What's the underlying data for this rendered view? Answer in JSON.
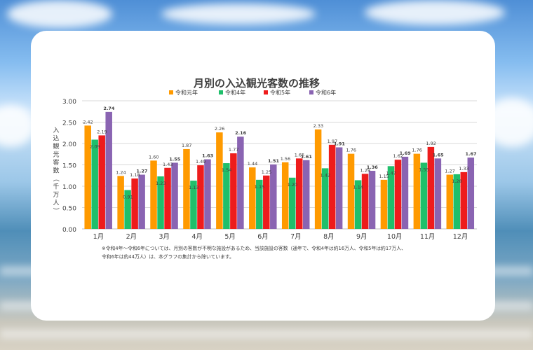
{
  "chart_data": {
    "type": "bar",
    "title": "月別の入込観光客数の推移",
    "ylabel": "入込観光客数（千万人）",
    "xlabel": "",
    "ylim": [
      0,
      3
    ],
    "yticks": [
      "0.00",
      "0.50",
      "1.00",
      "1.50",
      "2.00",
      "2.50",
      "3.00"
    ],
    "categories": [
      "1月",
      "2月",
      "3月",
      "4月",
      "5月",
      "6月",
      "7月",
      "8月",
      "9月",
      "10月",
      "11月",
      "12月"
    ],
    "series": [
      {
        "name": "令和元年",
        "color": "#ff9a00",
        "values": [
          2.42,
          1.24,
          1.6,
          1.87,
          2.26,
          1.44,
          1.56,
          2.33,
          1.76,
          1.15,
          1.76,
          1.27
        ]
      },
      {
        "name": "令和4年",
        "color": "#1fbf6b",
        "values": [
          2.09,
          0.91,
          1.23,
          1.13,
          1.54,
          1.15,
          1.2,
          1.42,
          1.14,
          1.47,
          1.55,
          1.28
        ]
      },
      {
        "name": "令和5年",
        "color": "#ee1c1c",
        "values": [
          2.19,
          1.18,
          1.43,
          1.49,
          1.77,
          1.25,
          1.65,
          1.97,
          1.29,
          1.62,
          1.92,
          1.33
        ]
      },
      {
        "name": "令和6年",
        "color": "#8a64b2",
        "values": [
          2.74,
          1.27,
          1.55,
          1.63,
          2.16,
          1.51,
          1.61,
          1.91,
          1.36,
          1.69,
          1.65,
          1.67
        ]
      }
    ],
    "data_label_texts": [
      [
        "2.42",
        "1.24",
        "1.60",
        "1.87",
        "2.26",
        "1.44",
        "1.56",
        "2.33",
        "1.76",
        "1.15",
        "1.76",
        "1.27"
      ],
      [
        "2.09",
        "0.91",
        "1.23",
        "1.13",
        "1.54",
        "1.15",
        "1.20",
        "1.42",
        "1.14",
        "1.47",
        "1.55",
        "1.28"
      ],
      [
        "2.19",
        "1.18",
        "1.43",
        "1.49",
        "1.77",
        "1.25",
        "1.65",
        "1.97",
        "1.29",
        "1.62",
        "1.92",
        "1.33"
      ],
      [
        "2.74",
        "1.27",
        "1.55",
        "1.63",
        "2.16",
        "1.51",
        "1.61",
        "1.91",
        "1.36",
        "1.69",
        "1.65",
        "1.67"
      ]
    ],
    "legend_position": "top",
    "grid": true,
    "footnote_lines": [
      "※令和4年～令和6年については、月別の客数が不明な施設があるため、当該施設の客数（通年で、令和4年は約16万人、令和5年は約17万人、",
      "令和6年は約44万人）は、本グラフの集計から除いています。"
    ]
  }
}
